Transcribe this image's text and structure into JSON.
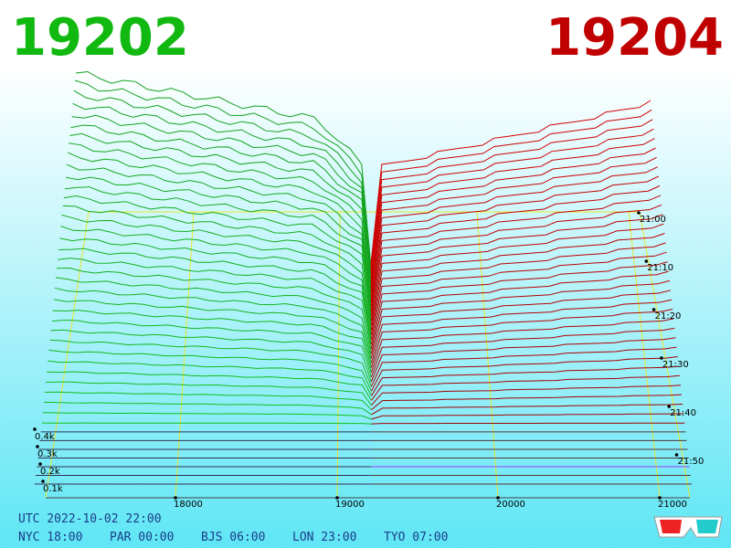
{
  "bid": "19202",
  "ask": "19204",
  "price_axis": [
    "18000",
    "19000",
    "20000",
    "21000"
  ],
  "volume_axis": [
    "0.4k",
    "0.3k",
    "0.2k",
    "0.1k"
  ],
  "time_axis": [
    "21:00",
    "21:10",
    "21:20",
    "21:30",
    "21:40",
    "21:50"
  ],
  "footer": {
    "utc": "UTC 2022-10-02 22:00",
    "zones": [
      "NYC 18:00",
      "PAR 00:00",
      "BJS 06:00",
      "LON 23:00",
      "TYO 07:00"
    ]
  }
}
